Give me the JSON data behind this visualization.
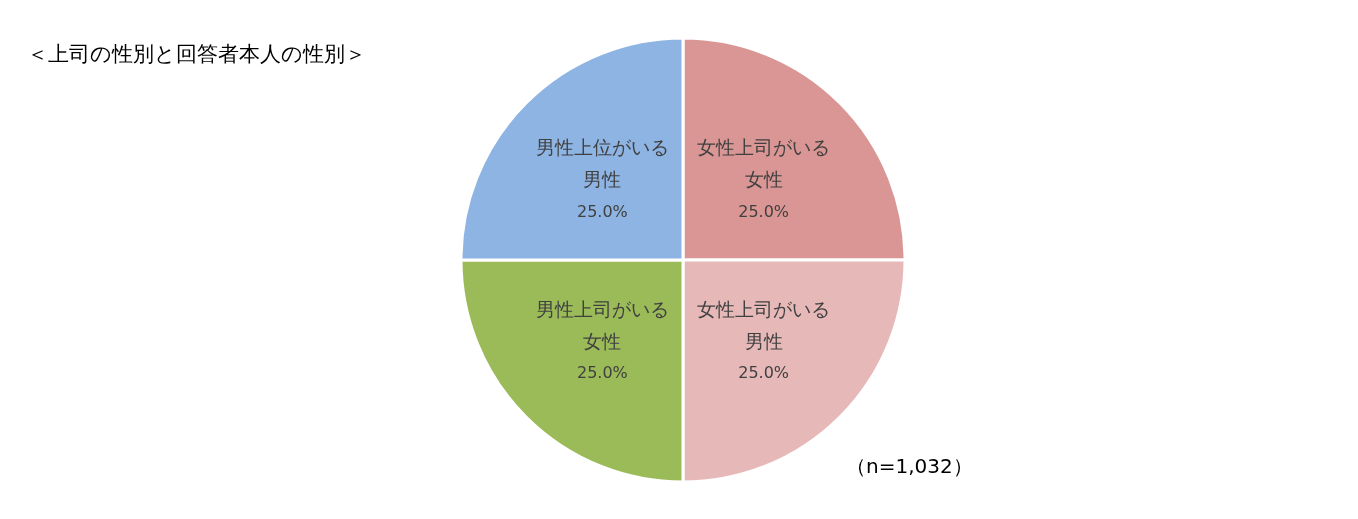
{
  "chart_data": {
    "type": "pie",
    "title": "＜上司の性別と回答者本人の性別＞",
    "categories": [
      "女性上司がいる女性",
      "女性上司がいる男性",
      "男性上司がいる女性",
      "男性上位がいる男性"
    ],
    "values": [
      25.0,
      25.0,
      25.0,
      25.0
    ],
    "value_labels": [
      "25.0%",
      "25.0%",
      "25.0%",
      "25.0%"
    ],
    "colors": [
      "#d99694",
      "#e6b9b8",
      "#9bbb59",
      "#8eb4e3"
    ],
    "annotations": [
      "（n=1,032）"
    ],
    "legend": false
  }
}
